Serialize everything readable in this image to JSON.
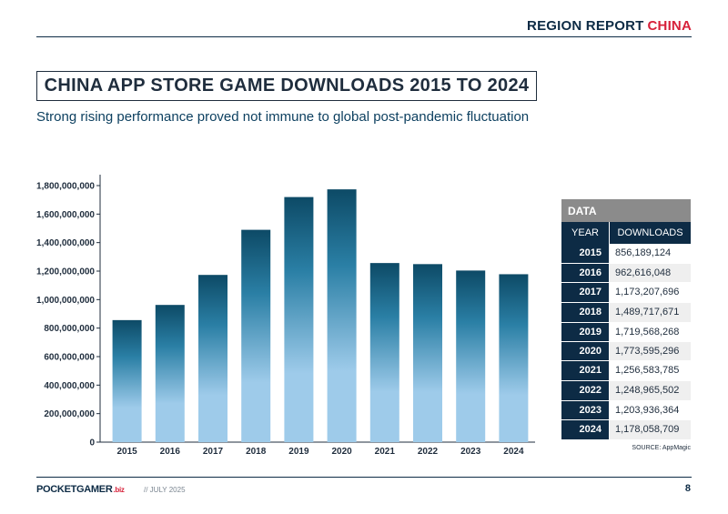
{
  "header": {
    "title_main": "REGION REPORT",
    "title_accent": "CHINA"
  },
  "title": "CHINA APP STORE GAME DOWNLOADS 2015 TO 2024",
  "subtitle": "Strong rising performance proved not immune to global post-pandemic fluctuation",
  "colors": {
    "navy": "#0d2b45",
    "red": "#d7213a",
    "bar_top": "#0d4a66",
    "bar_mid": "#2a7fa5",
    "bar_bottom": "#9ecbea"
  },
  "chart_data": {
    "type": "bar",
    "title": "CHINA APP STORE GAME DOWNLOADS 2015 TO 2024",
    "xlabel": "",
    "ylabel": "",
    "ylim": [
      0,
      1800000000
    ],
    "yticks": [
      0,
      200000000,
      400000000,
      600000000,
      800000000,
      1000000000,
      1200000000,
      1400000000,
      1600000000,
      1800000000
    ],
    "ytick_labels": [
      "0",
      "200,000,000",
      "400,000,000",
      "600,000,000",
      "800,000,000",
      "1,000,000,000",
      "1,200,000,000",
      "1,400,000,000",
      "1,600,000,000",
      "1,800,000,000"
    ],
    "categories": [
      "2015",
      "2016",
      "2017",
      "2018",
      "2019",
      "2020",
      "2021",
      "2022",
      "2023",
      "2024"
    ],
    "values": [
      856189124,
      962616048,
      1173207696,
      1489717671,
      1719568268,
      1773595296,
      1256583785,
      1248965502,
      1203936364,
      1178058709
    ],
    "grid": false
  },
  "table": {
    "caption": "DATA",
    "col_year": "YEAR",
    "col_downloads": "DOWNLOADS",
    "rows": [
      {
        "year": "2015",
        "downloads": "856,189,124"
      },
      {
        "year": "2016",
        "downloads": "962,616,048"
      },
      {
        "year": "2017",
        "downloads": "1,173,207,696"
      },
      {
        "year": "2018",
        "downloads": "1,489,717,671"
      },
      {
        "year": "2019",
        "downloads": "1,719,568,268"
      },
      {
        "year": "2020",
        "downloads": "1,773,595,296"
      },
      {
        "year": "2021",
        "downloads": "1,256,583,785"
      },
      {
        "year": "2022",
        "downloads": "1,248,965,502"
      },
      {
        "year": "2023",
        "downloads": "1,203,936,364"
      },
      {
        "year": "2024",
        "downloads": "1,178,058,709"
      }
    ]
  },
  "source": "SOURCE: AppMagic",
  "footer": {
    "logo_main": "POCKETGAMER",
    "logo_suffix": ".biz",
    "date": "// JULY 2025",
    "page": "8"
  }
}
